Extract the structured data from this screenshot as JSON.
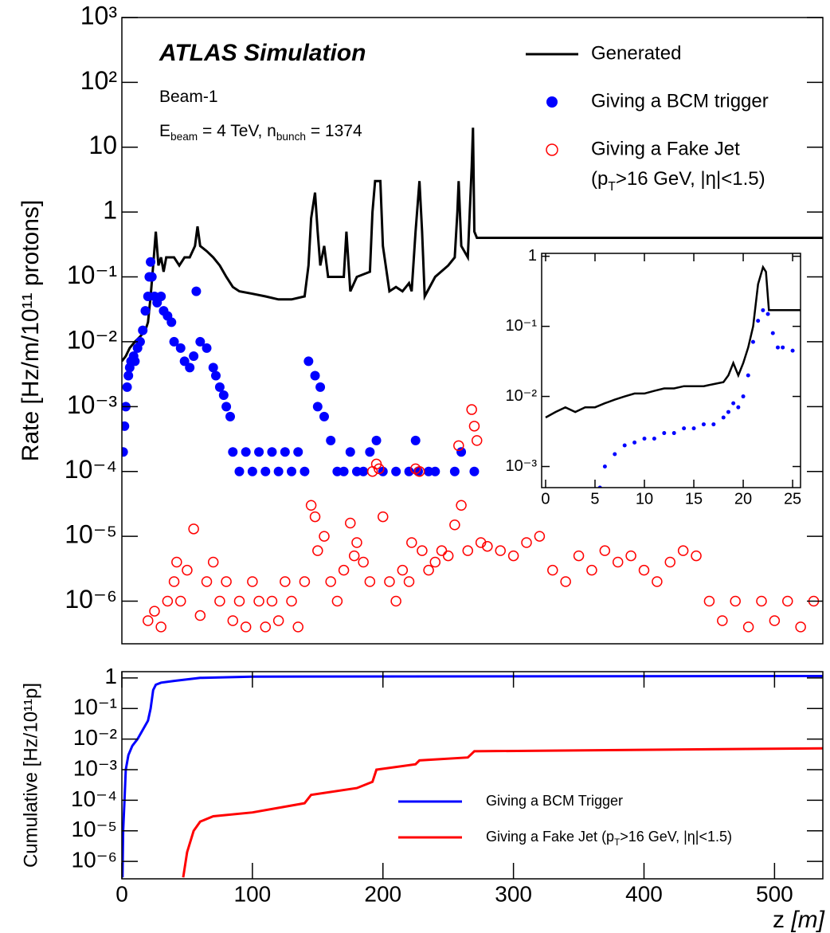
{
  "chart_data": [
    {
      "type": "scatter",
      "log_y": true,
      "ylabel": "Rate [Hz/m/10¹¹ protons]",
      "annotations": [
        [
          "ATLAS Simulation"
        ],
        [
          "Beam-1"
        ],
        [
          "E",
          "beam",
          " = 4 TeV, n",
          "bunch",
          " = 1374"
        ]
      ],
      "legend": "upper-right",
      "legend_note": [
        "(p",
        "T",
        ">16 GeV, |η|<1.5)"
      ],
      "xlim": [
        0,
        537
      ],
      "ylim": [
        2.2e-07,
        1000
      ],
      "yticks": [
        {
          "value": 1e-06,
          "label": "10⁻⁶"
        },
        {
          "value": 1e-05,
          "label": "10⁻⁵"
        },
        {
          "value": 0.0001,
          "label": "10⁻⁴"
        },
        {
          "value": 0.001,
          "label": "10⁻³"
        },
        {
          "value": 0.01,
          "label": "10⁻²"
        },
        {
          "value": 0.1,
          "label": "10⁻¹"
        },
        1,
        10,
        {
          "value": 100,
          "label": "10²"
        },
        {
          "value": 1000,
          "label": "10³"
        }
      ],
      "series": [
        {
          "name": "Generated",
          "color": "#000000",
          "mark": "line",
          "x": [
            0,
            3,
            6,
            10,
            14,
            18,
            20,
            22,
            24,
            26,
            28,
            30,
            32,
            34,
            40,
            44,
            48,
            52,
            56,
            58,
            60,
            65,
            70,
            75,
            80,
            85,
            90,
            100,
            110,
            120,
            130,
            140,
            143,
            145,
            148,
            150,
            152,
            155,
            158,
            170,
            172,
            175,
            180,
            190,
            192,
            194,
            198,
            200,
            205,
            210,
            215,
            220,
            222,
            225,
            228,
            230,
            232,
            240,
            250,
            255,
            257,
            258,
            260,
            265,
            268,
            269,
            270,
            272,
            537
          ],
          "values": [
            0.005,
            0.006,
            0.008,
            0.01,
            0.012,
            0.015,
            0.02,
            0.05,
            0.15,
            0.5,
            0.15,
            0.2,
            0.12,
            0.2,
            0.2,
            0.15,
            0.2,
            0.2,
            0.3,
            0.6,
            0.3,
            0.25,
            0.2,
            0.15,
            0.1,
            0.07,
            0.06,
            0.055,
            0.05,
            0.045,
            0.045,
            0.05,
            0.15,
            0.8,
            2,
            0.5,
            0.15,
            0.3,
            0.1,
            0.1,
            0.5,
            0.06,
            0.1,
            0.12,
            1,
            3,
            3,
            0.3,
            0.06,
            0.07,
            0.06,
            0.08,
            0.06,
            0.5,
            3,
            0.5,
            0.05,
            0.1,
            0.15,
            0.2,
            1,
            3,
            0.3,
            0.2,
            5,
            20,
            0.5,
            0.4,
            0.4
          ]
        },
        {
          "name": "Giving a BCM trigger",
          "color": "#0000ff",
          "mark": "dot",
          "marker_size": 6,
          "x": [
            1,
            2,
            3,
            4,
            5,
            6,
            7,
            8,
            9,
            10,
            12,
            14,
            16,
            18,
            20,
            21,
            22,
            23,
            25,
            27,
            30,
            32,
            35,
            38,
            40,
            45,
            48,
            52,
            55,
            57,
            60,
            65,
            70,
            72,
            75,
            78,
            80,
            83,
            85,
            90,
            95,
            100,
            105,
            110,
            115,
            120,
            125,
            130,
            135,
            140,
            143,
            148,
            150,
            152,
            155,
            160,
            165,
            170,
            175,
            180,
            185,
            190,
            195,
            200,
            210,
            220,
            225,
            227,
            235,
            240,
            255,
            260,
            270
          ],
          "values": [
            0.0002,
            0.0005,
            0.001,
            0.002,
            0.003,
            0.004,
            0.005,
            0.005,
            0.006,
            0.005,
            0.008,
            0.01,
            0.015,
            0.03,
            0.05,
            0.1,
            0.17,
            0.1,
            0.05,
            0.04,
            0.05,
            0.03,
            0.025,
            0.02,
            0.01,
            0.008,
            0.005,
            0.004,
            0.006,
            0.06,
            0.01,
            0.008,
            0.004,
            0.003,
            0.002,
            0.0015,
            0.001,
            0.0007,
            0.0002,
            0.0001,
            0.0002,
            0.0001,
            0.0002,
            0.0001,
            0.0002,
            0.0001,
            0.0002,
            0.0001,
            0.0002,
            0.0001,
            0.005,
            0.003,
            0.001,
            0.002,
            0.0007,
            0.0003,
            0.0001,
            0.0001,
            0.0002,
            0.0001,
            0.0001,
            0.0002,
            0.0003,
            0.0001,
            0.0001,
            0.0001,
            0.0003,
            0.0001,
            0.0001,
            0.0001,
            0.0001,
            0.0002,
            0.0001
          ]
        },
        {
          "name": "Giving a Fake Jet",
          "color": "#ff0000",
          "mark": "ring",
          "marker_size": 6,
          "x": [
            20,
            25,
            30,
            35,
            40,
            42,
            45,
            50,
            55,
            60,
            65,
            70,
            75,
            80,
            85,
            90,
            95,
            100,
            105,
            110,
            115,
            120,
            125,
            130,
            135,
            140,
            145,
            148,
            150,
            155,
            160,
            165,
            170,
            175,
            178,
            180,
            185,
            190,
            192,
            195,
            197,
            200,
            205,
            210,
            215,
            220,
            222,
            225,
            228,
            230,
            235,
            240,
            245,
            250,
            255,
            258,
            260,
            265,
            268,
            270,
            272,
            275,
            280,
            290,
            300,
            310,
            320,
            330,
            340,
            350,
            360,
            370,
            380,
            390,
            400,
            410,
            420,
            430,
            440,
            450,
            460,
            470,
            480,
            490,
            500,
            510,
            520,
            530
          ],
          "values": [
            5e-07,
            7e-07,
            4e-07,
            1e-06,
            2e-06,
            4e-06,
            1e-06,
            3e-06,
            1.3e-05,
            6e-07,
            2e-06,
            4e-06,
            1e-06,
            2e-06,
            5e-07,
            1e-06,
            4e-07,
            2e-06,
            1e-06,
            4e-07,
            1e-06,
            5e-07,
            2e-06,
            1e-06,
            4e-07,
            2e-06,
            3e-05,
            2e-05,
            6e-06,
            1e-05,
            2e-06,
            1e-06,
            3e-06,
            1.6e-05,
            5e-06,
            8e-06,
            4e-06,
            2e-06,
            0.0001,
            0.00013,
            0.00011,
            2e-05,
            2e-06,
            1e-06,
            3e-06,
            2e-06,
            8e-06,
            0.00011,
            0.0001,
            6e-06,
            3e-06,
            4e-06,
            6e-06,
            5e-06,
            1.5e-05,
            0.00025,
            3e-05,
            6e-06,
            0.0009,
            0.0005,
            0.0003,
            8e-06,
            7e-06,
            6e-06,
            5e-06,
            8e-06,
            1e-05,
            3e-06,
            2e-06,
            5e-06,
            3e-06,
            6e-06,
            4e-06,
            5e-06,
            3e-06,
            2e-06,
            4e-06,
            6e-06,
            5e-06,
            1e-06,
            5e-07,
            1e-06,
            4e-07,
            1e-06,
            5e-07,
            1e-06,
            4e-07,
            1e-06
          ]
        }
      ]
    },
    {
      "type": "scatter",
      "log_y": true,
      "xlim": [
        -0.4,
        25.8
      ],
      "ylim": [
        0.0005,
        1.1
      ],
      "xticks": [
        0,
        5,
        10,
        15,
        20,
        25
      ],
      "yticks": [
        {
          "value": 0.001,
          "label": "10⁻³"
        },
        {
          "value": 0.01,
          "label": "10⁻²"
        },
        {
          "value": 0.1,
          "label": "10⁻¹"
        },
        1
      ],
      "series": [
        {
          "color": "#000000",
          "mark": "line",
          "x": [
            0,
            1,
            2,
            3,
            4,
            5,
            6,
            7,
            8,
            9,
            10,
            11,
            12,
            13,
            14,
            15,
            16,
            17,
            18,
            18.5,
            19,
            19.5,
            20,
            20.5,
            21,
            21.5,
            22,
            22.3,
            22.6,
            25.8
          ],
          "values": [
            0.005,
            0.006,
            0.007,
            0.006,
            0.007,
            0.007,
            0.008,
            0.009,
            0.01,
            0.011,
            0.011,
            0.012,
            0.013,
            0.013,
            0.014,
            0.014,
            0.014,
            0.015,
            0.016,
            0.02,
            0.03,
            0.02,
            0.03,
            0.05,
            0.1,
            0.4,
            0.7,
            0.6,
            0.17,
            0.17
          ]
        },
        {
          "color": "#0000ff",
          "mark": "dot",
          "marker_size": 2.5,
          "x": [
            5.5,
            6,
            7,
            8,
            9,
            10,
            11,
            12,
            13,
            14,
            15,
            16,
            17,
            18,
            18.5,
            19,
            19.5,
            20,
            20.5,
            21,
            21.5,
            22,
            22.5,
            23,
            23.5,
            24,
            25
          ],
          "values": [
            0.0005,
            0.001,
            0.0015,
            0.002,
            0.0022,
            0.0025,
            0.0025,
            0.003,
            0.003,
            0.0035,
            0.0035,
            0.004,
            0.004,
            0.005,
            0.006,
            0.008,
            0.007,
            0.01,
            0.02,
            0.06,
            0.12,
            0.17,
            0.15,
            0.08,
            0.05,
            0.05,
            0.045
          ]
        }
      ]
    },
    {
      "type": "line",
      "log_y": true,
      "ylabel": "Cumulative [Hz/10¹¹p]",
      "xlabel": [
        "z",
        " [m]"
      ],
      "legend": "lower-right",
      "legend_note": [
        " (p",
        "T",
        ">16 GeV, |η|<1.5)"
      ],
      "xlim": [
        0,
        537
      ],
      "ylim": [
        2.7e-07,
        1.6
      ],
      "xticks": [
        0,
        100,
        200,
        300,
        400,
        500
      ],
      "yticks": [
        {
          "value": 1e-06,
          "label": "10⁻⁶"
        },
        {
          "value": 1e-05,
          "label": "10⁻⁵"
        },
        {
          "value": 0.0001,
          "label": "10⁻⁴"
        },
        {
          "value": 0.001,
          "label": "10⁻³"
        },
        {
          "value": 0.01,
          "label": "10⁻²"
        },
        {
          "value": 0.1,
          "label": "10⁻¹"
        },
        1
      ],
      "series": [
        {
          "name": "Giving a BCM Trigger",
          "color": "#0000ff",
          "mark": "line",
          "x": [
            0.5,
            1,
            2,
            3,
            5,
            8,
            12,
            16,
            20,
            22,
            24,
            26,
            30,
            40,
            60,
            100,
            537
          ],
          "values": [
            3e-07,
            1e-05,
            0.0001,
            0.001,
            0.003,
            0.006,
            0.01,
            0.02,
            0.04,
            0.1,
            0.4,
            0.6,
            0.7,
            0.8,
            1.0,
            1.1,
            1.15
          ]
        },
        {
          "name": "Giving a Fake Jet",
          "color": "#ff0000",
          "mark": "line",
          "x": [
            47,
            50,
            55,
            60,
            70,
            100,
            140,
            145,
            180,
            192,
            195,
            225,
            228,
            265,
            270,
            537
          ],
          "values": [
            3e-07,
            2e-06,
            1e-05,
            2e-05,
            3e-05,
            4e-05,
            8e-05,
            0.00015,
            0.00025,
            0.0004,
            0.001,
            0.0015,
            0.002,
            0.0025,
            0.004,
            0.005
          ]
        }
      ]
    }
  ]
}
